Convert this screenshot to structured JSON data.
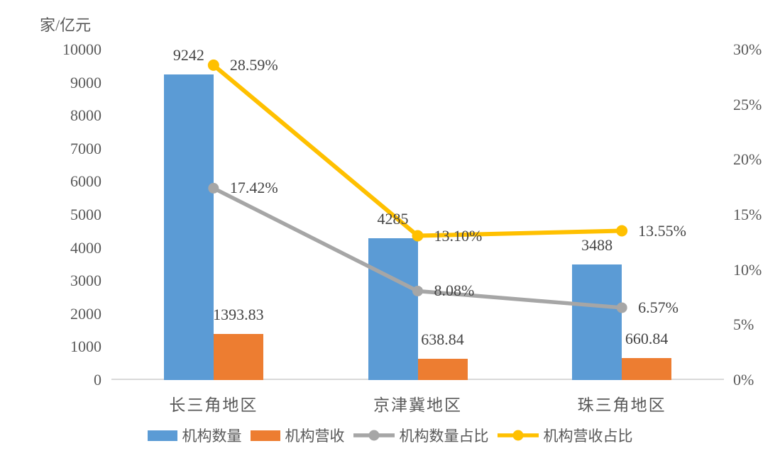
{
  "chart_data": {
    "type": "bar",
    "subtype": "combo-bar-line-dual-axis",
    "categories": [
      "长三角地区",
      "京津冀地区",
      "珠三角地区"
    ],
    "series": [
      {
        "name": "机构数量",
        "type": "bar",
        "axis": "left",
        "color": "#5B9BD5",
        "values": [
          9242,
          4285,
          3488
        ],
        "labels": [
          "9242",
          "4285",
          "3488"
        ]
      },
      {
        "name": "机构营收",
        "type": "bar",
        "axis": "left",
        "color": "#ED7D31",
        "values": [
          1393.83,
          638.84,
          660.84
        ],
        "labels": [
          "1393.83",
          "638.84",
          "660.84"
        ]
      },
      {
        "name": "机构数量占比",
        "type": "line",
        "axis": "right",
        "color": "#A6A6A6",
        "values": [
          17.42,
          8.08,
          6.57
        ],
        "labels": [
          "17.42%",
          "8.08%",
          "6.57%"
        ]
      },
      {
        "name": "机构营收占比",
        "type": "line",
        "axis": "right",
        "color": "#FFC000",
        "values": [
          28.59,
          13.1,
          13.55
        ],
        "labels": [
          "28.59%",
          "13.10%",
          "13.55%"
        ]
      }
    ],
    "left_axis": {
      "title": "家/亿元",
      "min": 0,
      "max": 10000,
      "step": 1000,
      "tick_labels": [
        "0",
        "1000",
        "2000",
        "3000",
        "4000",
        "5000",
        "6000",
        "7000",
        "8000",
        "9000",
        "10000"
      ]
    },
    "right_axis": {
      "min": 0,
      "max": 30,
      "step": 5,
      "tick_labels": [
        "0%",
        "5%",
        "10%",
        "15%",
        "20%",
        "25%",
        "30%"
      ]
    },
    "grid": false,
    "legend_position": "bottom"
  },
  "colors": {
    "bar_count": "#5B9BD5",
    "bar_revenue": "#ED7D31",
    "line_count_share": "#A6A6A6",
    "line_revenue_share": "#FFC000",
    "axis_line": "#D9D9D9",
    "axis_text": "#595959",
    "data_label_text": "#444444",
    "background": "#FFFFFF"
  }
}
